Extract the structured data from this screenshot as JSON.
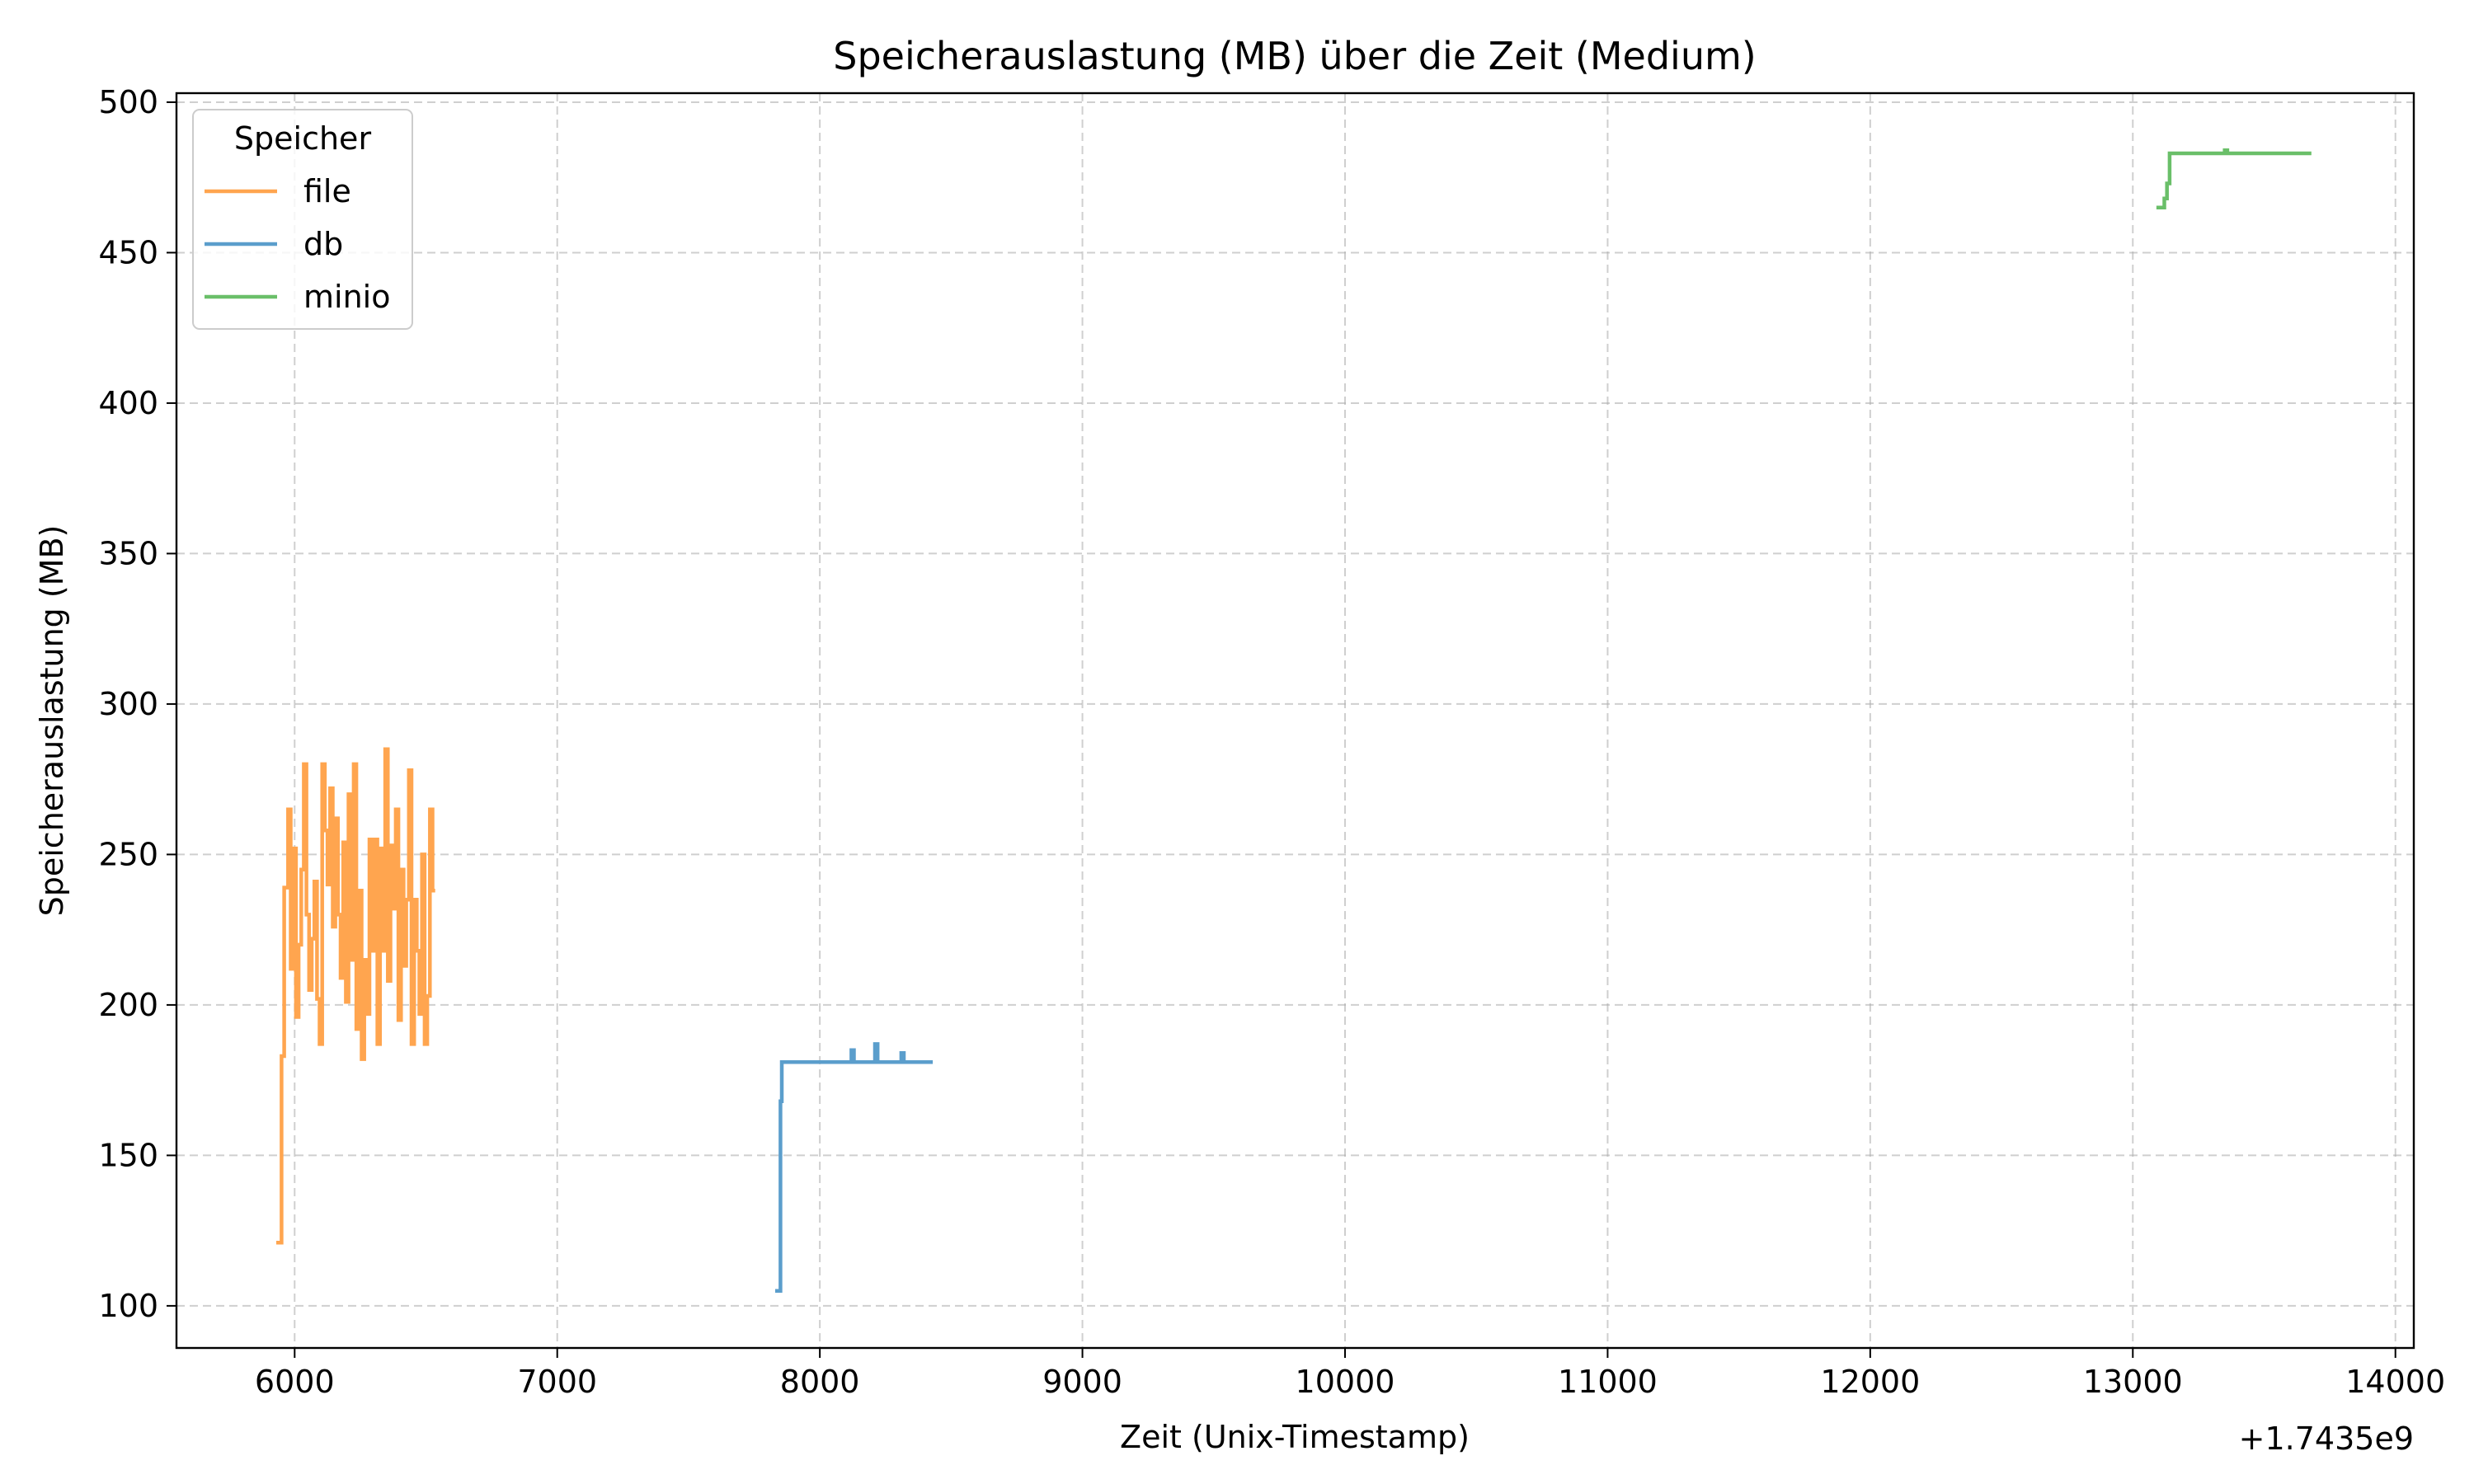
{
  "chart_data": {
    "type": "line",
    "title": "Speicherauslastung (MB) über die Zeit (Medium)",
    "xlabel": "Zeit (Unix-Timestamp)",
    "ylabel": "Speicherauslastung (MB)",
    "x_offset_label": "+1.7435e9",
    "xlim": [
      5550,
      14070
    ],
    "ylim": [
      86,
      503
    ],
    "xticks": [
      6000,
      7000,
      8000,
      9000,
      10000,
      11000,
      12000,
      13000,
      14000
    ],
    "yticks": [
      100,
      150,
      200,
      250,
      300,
      350,
      400,
      450,
      500
    ],
    "grid": true,
    "legend": {
      "title": "Speicher",
      "placement": "top-left"
    },
    "step": true,
    "series": [
      {
        "name": "file",
        "color": "#ffa54f",
        "points": [
          [
            5930,
            121
          ],
          [
            5950,
            121
          ],
          [
            5950,
            183
          ],
          [
            5960,
            183
          ],
          [
            5960,
            239
          ],
          [
            5975,
            239
          ],
          [
            5975,
            265
          ],
          [
            5985,
            265
          ],
          [
            5985,
            212
          ],
          [
            5995,
            212
          ],
          [
            5995,
            252
          ],
          [
            6005,
            252
          ],
          [
            6005,
            196
          ],
          [
            6015,
            196
          ],
          [
            6015,
            220
          ],
          [
            6025,
            220
          ],
          [
            6025,
            245
          ],
          [
            6035,
            245
          ],
          [
            6035,
            280
          ],
          [
            6045,
            280
          ],
          [
            6045,
            230
          ],
          [
            6055,
            230
          ],
          [
            6055,
            205
          ],
          [
            6065,
            205
          ],
          [
            6065,
            222
          ],
          [
            6075,
            222
          ],
          [
            6075,
            241
          ],
          [
            6085,
            241
          ],
          [
            6085,
            202
          ],
          [
            6095,
            202
          ],
          [
            6095,
            187
          ],
          [
            6105,
            187
          ],
          [
            6105,
            280
          ],
          [
            6115,
            280
          ],
          [
            6115,
            258
          ],
          [
            6125,
            258
          ],
          [
            6125,
            240
          ],
          [
            6135,
            240
          ],
          [
            6135,
            272
          ],
          [
            6145,
            272
          ],
          [
            6145,
            226
          ],
          [
            6155,
            226
          ],
          [
            6155,
            262
          ],
          [
            6165,
            262
          ],
          [
            6165,
            230
          ],
          [
            6175,
            230
          ],
          [
            6175,
            209
          ],
          [
            6185,
            209
          ],
          [
            6185,
            254
          ],
          [
            6195,
            254
          ],
          [
            6195,
            201
          ],
          [
            6205,
            201
          ],
          [
            6205,
            270
          ],
          [
            6215,
            270
          ],
          [
            6215,
            215
          ],
          [
            6225,
            215
          ],
          [
            6225,
            280
          ],
          [
            6235,
            280
          ],
          [
            6235,
            192
          ],
          [
            6245,
            192
          ],
          [
            6245,
            238
          ],
          [
            6255,
            238
          ],
          [
            6255,
            182
          ],
          [
            6265,
            182
          ],
          [
            6265,
            215
          ],
          [
            6275,
            215
          ],
          [
            6275,
            197
          ],
          [
            6285,
            197
          ],
          [
            6285,
            255
          ],
          [
            6295,
            255
          ],
          [
            6295,
            218
          ],
          [
            6305,
            218
          ],
          [
            6305,
            255
          ],
          [
            6315,
            255
          ],
          [
            6315,
            187
          ],
          [
            6325,
            187
          ],
          [
            6325,
            252
          ],
          [
            6335,
            252
          ],
          [
            6335,
            218
          ],
          [
            6345,
            218
          ],
          [
            6345,
            285
          ],
          [
            6355,
            285
          ],
          [
            6355,
            208
          ],
          [
            6365,
            208
          ],
          [
            6365,
            253
          ],
          [
            6375,
            253
          ],
          [
            6375,
            232
          ],
          [
            6385,
            232
          ],
          [
            6385,
            265
          ],
          [
            6395,
            265
          ],
          [
            6395,
            195
          ],
          [
            6405,
            195
          ],
          [
            6405,
            245
          ],
          [
            6415,
            245
          ],
          [
            6415,
            213
          ],
          [
            6425,
            213
          ],
          [
            6425,
            235
          ],
          [
            6435,
            235
          ],
          [
            6435,
            278
          ],
          [
            6445,
            278
          ],
          [
            6445,
            187
          ],
          [
            6455,
            187
          ],
          [
            6455,
            235
          ],
          [
            6465,
            235
          ],
          [
            6465,
            218
          ],
          [
            6475,
            218
          ],
          [
            6475,
            197
          ],
          [
            6485,
            197
          ],
          [
            6485,
            250
          ],
          [
            6495,
            250
          ],
          [
            6495,
            187
          ],
          [
            6505,
            187
          ],
          [
            6505,
            203
          ],
          [
            6515,
            203
          ],
          [
            6515,
            265
          ],
          [
            6525,
            265
          ],
          [
            6525,
            238
          ],
          [
            6535,
            238
          ]
        ]
      },
      {
        "name": "db",
        "color": "#5b9ecc",
        "points": [
          [
            7830,
            105
          ],
          [
            7850,
            105
          ],
          [
            7850,
            168
          ],
          [
            7855,
            168
          ],
          [
            7855,
            181
          ],
          [
            8120,
            181
          ],
          [
            8120,
            185
          ],
          [
            8130,
            185
          ],
          [
            8130,
            181
          ],
          [
            8210,
            181
          ],
          [
            8210,
            187
          ],
          [
            8220,
            187
          ],
          [
            8220,
            181
          ],
          [
            8310,
            181
          ],
          [
            8310,
            184
          ],
          [
            8320,
            184
          ],
          [
            8320,
            181
          ],
          [
            8430,
            181
          ]
        ]
      },
      {
        "name": "minio",
        "color": "#6abf69",
        "points": [
          [
            13090,
            465
          ],
          [
            13120,
            465
          ],
          [
            13120,
            468
          ],
          [
            13130,
            468
          ],
          [
            13130,
            473
          ],
          [
            13140,
            473
          ],
          [
            13140,
            483
          ],
          [
            13350,
            483
          ],
          [
            13350,
            484
          ],
          [
            13360,
            484
          ],
          [
            13360,
            483
          ],
          [
            13680,
            483
          ]
        ]
      }
    ]
  }
}
